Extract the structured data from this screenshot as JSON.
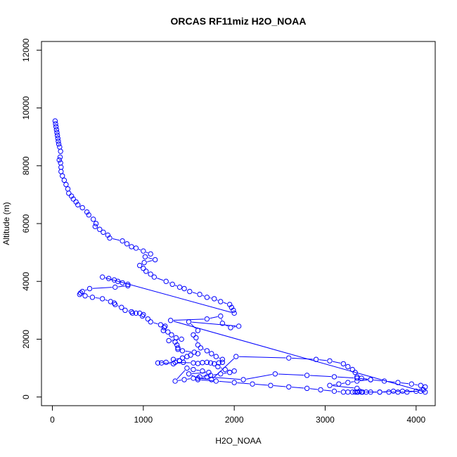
{
  "chart_data": {
    "type": "scatter",
    "title": "ORCAS RF11miz H2O_NOAA",
    "xlabel": "H2O_NOAA",
    "ylabel": "Altitude (m)",
    "xlim": [
      -120,
      4210
    ],
    "ylim": [
      -300,
      12300
    ],
    "xticks": [
      0,
      1000,
      2000,
      3000,
      4000
    ],
    "yticks": [
      0,
      2000,
      4000,
      6000,
      8000,
      10000,
      12000
    ],
    "xtick_labels": [
      "0",
      "1000",
      "2000",
      "3000",
      "4000"
    ],
    "ytick_labels": [
      "0",
      "2000",
      "4000",
      "6000",
      "8000",
      "10000",
      "12000"
    ],
    "grid": false,
    "marker": "open-circle",
    "connected": true,
    "color": "#0000ff",
    "series": [
      {
        "points": [
          [
            30,
            9550
          ],
          [
            35,
            9450
          ],
          [
            40,
            9350
          ],
          [
            45,
            9250
          ],
          [
            50,
            9150
          ],
          [
            55,
            9050
          ],
          [
            60,
            8950
          ],
          [
            65,
            8850
          ],
          [
            70,
            8750
          ],
          [
            80,
            8650
          ],
          [
            90,
            8500
          ],
          [
            85,
            8300
          ],
          [
            75,
            8200
          ],
          [
            90,
            8100
          ],
          [
            95,
            7950
          ],
          [
            95,
            7800
          ],
          [
            110,
            7650
          ],
          [
            130,
            7500
          ],
          [
            150,
            7350
          ],
          [
            170,
            7200
          ],
          [
            180,
            7050
          ],
          [
            210,
            6950
          ],
          [
            230,
            6850
          ],
          [
            260,
            6750
          ],
          [
            280,
            6650
          ],
          [
            330,
            6550
          ],
          [
            380,
            6400
          ],
          [
            400,
            6300
          ],
          [
            450,
            6150
          ],
          [
            480,
            6000
          ],
          [
            470,
            5900
          ],
          [
            520,
            5800
          ],
          [
            560,
            5700
          ],
          [
            610,
            5600
          ],
          [
            630,
            5500
          ],
          [
            770,
            5400
          ],
          [
            820,
            5300
          ],
          [
            870,
            5200
          ],
          [
            920,
            5150
          ],
          [
            1000,
            5050
          ],
          [
            1080,
            4950
          ],
          [
            1020,
            4850
          ],
          [
            1130,
            4750
          ],
          [
            1010,
            4650
          ],
          [
            960,
            4550
          ],
          [
            1000,
            4450
          ],
          [
            1030,
            4350
          ],
          [
            1080,
            4250
          ],
          [
            1120,
            4150
          ],
          [
            1250,
            4000
          ],
          [
            1320,
            3900
          ],
          [
            1400,
            3800
          ],
          [
            1450,
            3750
          ],
          [
            1510,
            3650
          ],
          [
            1620,
            3550
          ],
          [
            1700,
            3450
          ],
          [
            1780,
            3400
          ],
          [
            1850,
            3300
          ],
          [
            1950,
            3200
          ],
          [
            1970,
            3100
          ],
          [
            1990,
            3000
          ],
          [
            2000,
            2900
          ],
          [
            550,
            4150
          ],
          [
            620,
            4100
          ],
          [
            680,
            4050
          ],
          [
            720,
            4000
          ],
          [
            770,
            3950
          ],
          [
            830,
            3900
          ],
          [
            830,
            3850
          ],
          [
            690,
            3800
          ],
          [
            410,
            3750
          ],
          [
            330,
            3650
          ],
          [
            310,
            3600
          ],
          [
            300,
            3550
          ],
          [
            360,
            3500
          ],
          [
            440,
            3450
          ],
          [
            550,
            3400
          ],
          [
            640,
            3300
          ],
          [
            680,
            3250
          ],
          [
            690,
            3200
          ],
          [
            760,
            3100
          ],
          [
            800,
            3000
          ],
          [
            870,
            2950
          ],
          [
            880,
            2900
          ],
          [
            920,
            2900
          ],
          [
            960,
            2900
          ],
          [
            1000,
            2850
          ],
          [
            990,
            2800
          ],
          [
            1050,
            2700
          ],
          [
            1080,
            2600
          ],
          [
            1190,
            2500
          ],
          [
            1240,
            2450
          ],
          [
            1230,
            2400
          ],
          [
            1220,
            2300
          ],
          [
            1270,
            2250
          ],
          [
            1310,
            2150
          ],
          [
            1360,
            2050
          ],
          [
            1420,
            2000
          ],
          [
            1280,
            1950
          ],
          [
            1350,
            1900
          ],
          [
            1370,
            1800
          ],
          [
            1380,
            1700
          ],
          [
            1380,
            1650
          ],
          [
            1430,
            1600
          ],
          [
            1560,
            1550
          ],
          [
            1600,
            1500
          ],
          [
            1520,
            1450
          ],
          [
            1480,
            1400
          ],
          [
            1430,
            1350
          ],
          [
            1330,
            1300
          ],
          [
            1400,
            1250
          ],
          [
            1440,
            1200
          ],
          [
            1330,
            1150
          ],
          [
            1200,
            1180
          ],
          [
            1160,
            1180
          ],
          [
            1250,
            1200
          ],
          [
            1350,
            1200
          ],
          [
            1550,
            1180
          ],
          [
            1600,
            1160
          ],
          [
            1650,
            1190
          ],
          [
            1700,
            1200
          ],
          [
            1740,
            1180
          ],
          [
            1780,
            1150
          ],
          [
            1830,
            1180
          ],
          [
            1870,
            1200
          ],
          [
            1820,
            1050
          ],
          [
            1900,
            950
          ],
          [
            2000,
            900
          ],
          [
            1950,
            850
          ],
          [
            1850,
            800
          ],
          [
            1740,
            750
          ],
          [
            1620,
            700
          ],
          [
            1550,
            650
          ],
          [
            1450,
            600
          ],
          [
            1350,
            550
          ],
          [
            1480,
            1000
          ],
          [
            1550,
            950
          ],
          [
            1650,
            900
          ],
          [
            1720,
            850
          ],
          [
            1500,
            800
          ],
          [
            1600,
            650
          ],
          [
            1750,
            600
          ],
          [
            2020,
            1400
          ],
          [
            2600,
            1350
          ],
          [
            2900,
            1300
          ],
          [
            3050,
            1250
          ],
          [
            3200,
            1150
          ],
          [
            3250,
            1050
          ],
          [
            3300,
            950
          ],
          [
            3330,
            850
          ],
          [
            3350,
            700
          ],
          [
            3400,
            650
          ],
          [
            3500,
            600
          ],
          [
            3650,
            550
          ],
          [
            3800,
            500
          ],
          [
            3950,
            450
          ],
          [
            4050,
            400
          ],
          [
            4100,
            350
          ],
          [
            4080,
            250
          ],
          [
            4000,
            200
          ],
          [
            3900,
            170
          ],
          [
            3800,
            170
          ],
          [
            3700,
            170
          ],
          [
            3600,
            170
          ],
          [
            3500,
            170
          ],
          [
            3450,
            170
          ],
          [
            3400,
            170
          ],
          [
            3350,
            170
          ],
          [
            3300,
            170
          ],
          [
            3250,
            170
          ],
          [
            3200,
            170
          ],
          [
            3100,
            200
          ],
          [
            2950,
            250
          ],
          [
            2800,
            300
          ],
          [
            2600,
            350
          ],
          [
            2400,
            400
          ],
          [
            2200,
            450
          ],
          [
            2000,
            500
          ],
          [
            1800,
            550
          ],
          [
            1600,
            600
          ],
          [
            1700,
            700
          ],
          [
            2100,
            600
          ],
          [
            2450,
            800
          ],
          [
            2800,
            750
          ],
          [
            3100,
            700
          ],
          [
            3350,
            650
          ],
          [
            3500,
            600
          ],
          [
            3350,
            550
          ],
          [
            3250,
            500
          ],
          [
            3150,
            450
          ],
          [
            3050,
            400
          ],
          [
            3350,
            300
          ],
          [
            3380,
            200
          ],
          [
            3330,
            170
          ],
          [
            3360,
            170
          ],
          [
            3410,
            170
          ],
          [
            3600,
            170
          ],
          [
            3750,
            200
          ],
          [
            3850,
            200
          ],
          [
            4050,
            200
          ],
          [
            4100,
            170
          ],
          [
            1300,
            2650
          ],
          [
            1700,
            2700
          ],
          [
            1850,
            2800
          ],
          [
            1870,
            2550
          ],
          [
            1960,
            2400
          ],
          [
            2050,
            2450
          ],
          [
            1500,
            2600
          ],
          [
            1600,
            2300
          ],
          [
            1550,
            2150
          ],
          [
            1580,
            2050
          ],
          [
            1600,
            1800
          ],
          [
            1630,
            1700
          ],
          [
            1700,
            1600
          ],
          [
            1750,
            1500
          ],
          [
            1800,
            1400
          ],
          [
            1870,
            1300
          ]
        ]
      }
    ]
  }
}
